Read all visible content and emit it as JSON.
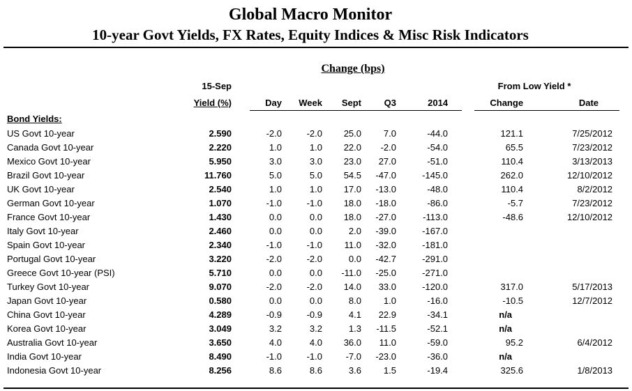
{
  "header": {
    "title": "Global Macro Monitor",
    "subtitle": "10-year Govt Yields, FX Rates, Equity Indices & Misc Risk Indicators"
  },
  "table": {
    "change_group_label": "Change (bps)",
    "yield_header_line1": "15-Sep",
    "yield_header_line2": "Yield (%)",
    "change_columns": [
      "Day",
      "Week",
      "Sept",
      "Q3",
      "2014"
    ],
    "from_low_group_label": "From Low Yield *",
    "from_low_columns": [
      "Change",
      "Date"
    ],
    "section_label": "Bond Yields:",
    "rows": [
      {
        "label": "US Govt 10-year",
        "yield": "2.590",
        "day": "-2.0",
        "week": "-2.0",
        "sept": "25.0",
        "q3": "7.0",
        "y2014": "-44.0",
        "low_change": "121.1",
        "low_date": "7/25/2012"
      },
      {
        "label": "Canada Govt 10-year",
        "yield": "2.220",
        "day": "1.0",
        "week": "1.0",
        "sept": "22.0",
        "q3": "-2.0",
        "y2014": "-54.0",
        "low_change": "65.5",
        "low_date": "7/23/2012"
      },
      {
        "label": "Mexico Govt 10-year",
        "yield": "5.950",
        "day": "3.0",
        "week": "3.0",
        "sept": "23.0",
        "q3": "27.0",
        "y2014": "-51.0",
        "low_change": "110.4",
        "low_date": "3/13/2013"
      },
      {
        "label": "Brazil Govt 10-year",
        "yield": "11.760",
        "day": "5.0",
        "week": "5.0",
        "sept": "54.5",
        "q3": "-47.0",
        "y2014": "-145.0",
        "low_change": "262.0",
        "low_date": "12/10/2012"
      },
      {
        "label": "UK Govt 10-year",
        "yield": "2.540",
        "day": "1.0",
        "week": "1.0",
        "sept": "17.0",
        "q3": "-13.0",
        "y2014": "-48.0",
        "low_change": "110.4",
        "low_date": "8/2/2012"
      },
      {
        "label": "German Govt 10-year",
        "yield": "1.070",
        "day": "-1.0",
        "week": "-1.0",
        "sept": "18.0",
        "q3": "-18.0",
        "y2014": "-86.0",
        "low_change": "-5.7",
        "low_date": "7/23/2012"
      },
      {
        "label": "France Govt 10-year",
        "yield": "1.430",
        "day": "0.0",
        "week": "0.0",
        "sept": "18.0",
        "q3": "-27.0",
        "y2014": "-113.0",
        "low_change": "-48.6",
        "low_date": "12/10/2012"
      },
      {
        "label": "Italy Govt 10-year",
        "yield": "2.460",
        "day": "0.0",
        "week": "0.0",
        "sept": "2.0",
        "q3": "-39.0",
        "y2014": "-167.0",
        "low_change": "",
        "low_date": ""
      },
      {
        "label": "Spain Govt 10-year",
        "yield": "2.340",
        "day": "-1.0",
        "week": "-1.0",
        "sept": "11.0",
        "q3": "-32.0",
        "y2014": "-181.0",
        "low_change": "",
        "low_date": ""
      },
      {
        "label": "Portugal Govt 10-year",
        "yield": "3.220",
        "day": "-2.0",
        "week": "-2.0",
        "sept": "0.0",
        "q3": "-42.7",
        "y2014": "-291.0",
        "low_change": "",
        "low_date": ""
      },
      {
        "label": "Greece Govt 10-year (PSI)",
        "yield": "5.710",
        "day": "0.0",
        "week": "0.0",
        "sept": "-11.0",
        "q3": "-25.0",
        "y2014": "-271.0",
        "low_change": "",
        "low_date": ""
      },
      {
        "label": "Turkey Govt 10-year",
        "yield": "9.070",
        "day": "-2.0",
        "week": "-2.0",
        "sept": "14.0",
        "q3": "33.0",
        "y2014": "-120.0",
        "low_change": "317.0",
        "low_date": "5/17/2013"
      },
      {
        "label": "Japan Govt 10-year",
        "yield": "0.580",
        "day": "0.0",
        "week": "0.0",
        "sept": "8.0",
        "q3": "1.0",
        "y2014": "-16.0",
        "low_change": "-10.5",
        "low_date": "12/7/2012"
      },
      {
        "label": "China Govt 10-year",
        "yield": "4.289",
        "day": "-0.9",
        "week": "-0.9",
        "sept": "4.1",
        "q3": "22.9",
        "y2014": "-34.1",
        "low_change": "n/a",
        "low_date": ""
      },
      {
        "label": "Korea Govt 10-year",
        "yield": "3.049",
        "day": "3.2",
        "week": "3.2",
        "sept": "1.3",
        "q3": "-11.5",
        "y2014": "-52.1",
        "low_change": "n/a",
        "low_date": ""
      },
      {
        "label": "Australia Govt 10-year",
        "yield": "3.650",
        "day": "4.0",
        "week": "4.0",
        "sept": "36.0",
        "q3": "11.0",
        "y2014": "-59.0",
        "low_change": "95.2",
        "low_date": "6/4/2012"
      },
      {
        "label": "India Govt 10-year",
        "yield": "8.490",
        "day": "-1.0",
        "week": "-1.0",
        "sept": "-7.0",
        "q3": "-23.0",
        "y2014": "-36.0",
        "low_change": "n/a",
        "low_date": ""
      },
      {
        "label": "Indonesia Govt 10-year",
        "yield": "8.256",
        "day": "8.6",
        "week": "8.6",
        "sept": "3.6",
        "q3": "1.5",
        "y2014": "-19.4",
        "low_change": "325.6",
        "low_date": "1/8/2013"
      }
    ]
  }
}
